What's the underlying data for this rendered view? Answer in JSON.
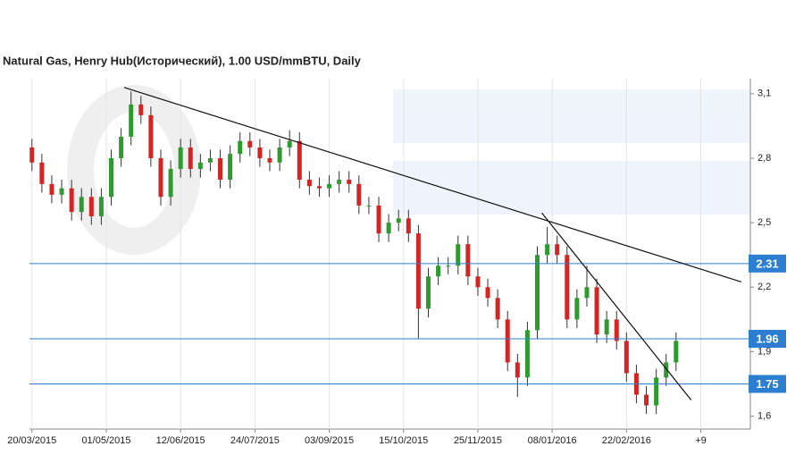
{
  "chart_data": {
    "type": "candlestick",
    "title": "Natural Gas, Henry Hub(Исторический), 1.00 USD/mmBTU, Daily",
    "x": [
      0,
      4,
      8,
      12,
      16,
      20,
      24,
      28,
      32,
      36,
      40,
      44,
      48,
      52,
      56,
      60,
      64,
      68,
      72,
      76,
      80,
      84,
      88,
      92,
      96,
      100,
      104,
      108,
      112,
      116,
      120,
      124,
      128,
      132,
      136,
      140,
      144,
      148,
      152,
      156,
      160,
      164,
      168,
      172,
      176,
      180,
      184,
      188,
      192,
      196,
      200,
      204,
      208,
      212,
      216,
      220,
      224,
      228,
      232,
      236,
      240,
      244,
      248,
      252,
      256,
      260
    ],
    "open": [
      2.85,
      2.78,
      2.68,
      2.63,
      2.66,
      2.55,
      2.62,
      2.53,
      2.62,
      2.8,
      2.9,
      3.05,
      3.0,
      2.8,
      2.62,
      2.75,
      2.85,
      2.75,
      2.78,
      2.8,
      2.7,
      2.82,
      2.88,
      2.85,
      2.8,
      2.78,
      2.85,
      2.88,
      2.7,
      2.67,
      2.66,
      2.68,
      2.7,
      2.68,
      2.58,
      2.58,
      2.45,
      2.5,
      2.52,
      2.45,
      2.1,
      2.25,
      2.3,
      2.3,
      2.4,
      2.25,
      2.2,
      2.15,
      2.05,
      1.85,
      1.78,
      2.0,
      2.35,
      2.4,
      2.35,
      2.05,
      2.15,
      2.2,
      1.98,
      2.05,
      1.95,
      1.8,
      1.7,
      1.65,
      1.78,
      1.85
    ],
    "high": [
      2.89,
      2.82,
      2.72,
      2.7,
      2.7,
      2.66,
      2.66,
      2.66,
      2.84,
      2.94,
      3.11,
      3.09,
      3.04,
      2.84,
      2.79,
      2.89,
      2.89,
      2.82,
      2.84,
      2.84,
      2.86,
      2.92,
      2.92,
      2.89,
      2.84,
      2.89,
      2.93,
      2.92,
      2.74,
      2.71,
      2.72,
      2.74,
      2.74,
      2.72,
      2.62,
      2.62,
      2.54,
      2.56,
      2.56,
      2.49,
      2.29,
      2.34,
      2.34,
      2.44,
      2.44,
      2.29,
      2.24,
      2.19,
      2.09,
      1.89,
      2.04,
      2.39,
      2.48,
      2.44,
      2.39,
      2.19,
      2.3,
      2.24,
      2.09,
      2.09,
      1.99,
      1.84,
      1.74,
      1.82,
      1.89,
      1.99
    ],
    "low": [
      2.74,
      2.64,
      2.59,
      2.59,
      2.51,
      2.51,
      2.49,
      2.49,
      2.58,
      2.76,
      2.86,
      2.96,
      2.76,
      2.58,
      2.58,
      2.71,
      2.71,
      2.71,
      2.74,
      2.66,
      2.66,
      2.78,
      2.81,
      2.76,
      2.74,
      2.74,
      2.81,
      2.66,
      2.63,
      2.62,
      2.62,
      2.64,
      2.64,
      2.54,
      2.54,
      2.41,
      2.41,
      2.46,
      2.41,
      1.96,
      2.06,
      2.21,
      2.26,
      2.26,
      2.21,
      2.16,
      2.11,
      2.01,
      1.81,
      1.69,
      1.74,
      1.96,
      2.31,
      2.31,
      2.01,
      2.01,
      2.11,
      1.94,
      1.94,
      1.91,
      1.76,
      1.66,
      1.61,
      1.61,
      1.74,
      1.81
    ],
    "close": [
      2.78,
      2.68,
      2.63,
      2.66,
      2.55,
      2.62,
      2.53,
      2.62,
      2.8,
      2.9,
      3.05,
      3.0,
      2.8,
      2.62,
      2.75,
      2.85,
      2.75,
      2.78,
      2.8,
      2.7,
      2.82,
      2.88,
      2.85,
      2.8,
      2.78,
      2.85,
      2.88,
      2.7,
      2.67,
      2.66,
      2.68,
      2.7,
      2.68,
      2.58,
      2.58,
      2.45,
      2.5,
      2.52,
      2.45,
      2.1,
      2.25,
      2.3,
      2.3,
      2.4,
      2.25,
      2.2,
      2.15,
      2.05,
      1.85,
      1.78,
      2.0,
      2.35,
      2.4,
      2.35,
      2.05,
      2.15,
      2.2,
      1.98,
      2.05,
      1.95,
      1.8,
      1.7,
      1.65,
      1.78,
      1.85,
      1.95
    ],
    "up_color": "#2f9a2f",
    "down_color": "#d42424",
    "xlim": [
      -1,
      290
    ],
    "ylim": [
      1.54,
      3.17
    ],
    "xticks": [
      {
        "value": 0,
        "label": "20/03/2015"
      },
      {
        "value": 30,
        "label": "01/05/2015"
      },
      {
        "value": 60,
        "label": "12/06/2015"
      },
      {
        "value": 90,
        "label": "24/07/2015"
      },
      {
        "value": 120,
        "label": "03/09/2015"
      },
      {
        "value": 150,
        "label": "15/10/2015"
      },
      {
        "value": 180,
        "label": "25/11/2015"
      },
      {
        "value": 210,
        "label": "08/01/2016"
      },
      {
        "value": 240,
        "label": "22/02/2016"
      },
      {
        "value": 270,
        "label": "+9"
      }
    ],
    "yticks": [
      {
        "value": 1.6,
        "label": "1,6"
      },
      {
        "value": 1.9,
        "label": "1,9"
      },
      {
        "value": 2.2,
        "label": "2,2"
      },
      {
        "value": 2.5,
        "label": "2,5"
      },
      {
        "value": 2.8,
        "label": "2,8"
      },
      {
        "value": 3.1,
        "label": "3,1"
      }
    ],
    "levels": [
      2.31,
      1.96,
      1.75
    ],
    "level_color": "#2c7fd0",
    "trendlines": [
      {
        "x": [
          37.2,
          286.3
        ],
        "y": [
          3.129,
          2.225
        ]
      },
      {
        "x": [
          205.8,
          266.1
        ],
        "y": [
          2.546,
          1.675
        ]
      }
    ],
    "grid": true
  }
}
